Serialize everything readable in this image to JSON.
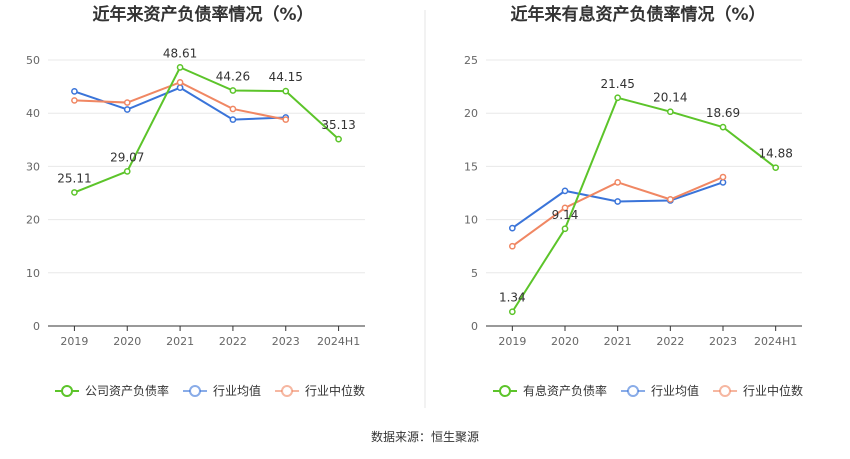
{
  "colors": {
    "main": "#5cc42a",
    "avg": "#3a74d9",
    "median": "#f08763",
    "grid": "#e8e8e8",
    "axis": "#333333",
    "divider": "#e6e6e6"
  },
  "source": "数据来源：恒生聚源",
  "chart_data": [
    {
      "type": "line",
      "title": "近年来资产负债率情况（%）",
      "categories": [
        "2019",
        "2020",
        "2021",
        "2022",
        "2023",
        "2024H1"
      ],
      "ylim": [
        0,
        50
      ],
      "yticks": [
        0,
        10,
        20,
        30,
        40,
        50
      ],
      "grid": true,
      "legend_position": "bottom",
      "series": [
        {
          "name": "公司资产负债率",
          "role": "main",
          "values": [
            25.11,
            29.07,
            48.61,
            44.26,
            44.15,
            35.13
          ],
          "labels": [
            "25.11",
            "29.07",
            "48.61",
            "44.26",
            "44.15",
            "35.13"
          ]
        },
        {
          "name": "行业均值",
          "role": "avg",
          "values": [
            44.1,
            40.7,
            44.8,
            38.8,
            39.2,
            null
          ]
        },
        {
          "name": "行业中位数",
          "role": "median",
          "values": [
            42.4,
            42.0,
            45.8,
            40.8,
            38.8,
            null
          ]
        }
      ]
    },
    {
      "type": "line",
      "title": "近年来有息资产负债率情况（%）",
      "categories": [
        "2019",
        "2020",
        "2021",
        "2022",
        "2023",
        "2024H1"
      ],
      "ylim": [
        0,
        25
      ],
      "yticks": [
        0,
        5,
        10,
        15,
        20,
        25
      ],
      "grid": true,
      "legend_position": "bottom",
      "series": [
        {
          "name": "有息资产负债率",
          "role": "main",
          "values": [
            1.34,
            9.14,
            21.45,
            20.14,
            18.69,
            14.88
          ],
          "labels": [
            "1.34",
            "9.14",
            "21.45",
            "20.14",
            "18.69",
            "14.88"
          ]
        },
        {
          "name": "行业均值",
          "role": "avg",
          "values": [
            9.2,
            12.7,
            11.7,
            11.8,
            13.5,
            null
          ]
        },
        {
          "name": "行业中位数",
          "role": "median",
          "values": [
            7.5,
            11.1,
            13.5,
            11.9,
            14.0,
            null
          ]
        }
      ]
    }
  ]
}
